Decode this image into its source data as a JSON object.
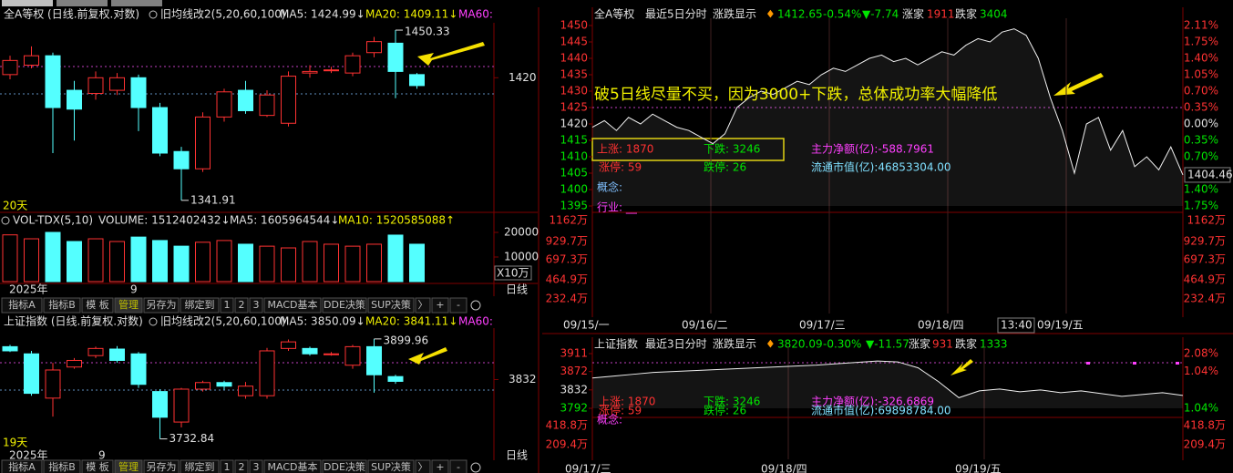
{
  "left_top": {
    "header": {
      "name": "全A等权 (日线.前复权.对数)",
      "indicator": "旧均线改2(5,20,60,100)",
      "ma5": "MA5: 1424.99↓",
      "ma20": "MA20: 1409.11↓",
      "ma60": "MA60:"
    },
    "ylim": [
      1336,
      1455
    ],
    "yticks": [
      1420
    ],
    "high_label": "1450.33",
    "low_label": "1341.91",
    "days": "20天",
    "candles": [
      [
        1422,
        1434,
        1419,
        1431
      ],
      [
        1428,
        1440,
        1426,
        1434
      ],
      [
        1434,
        1436,
        1372,
        1401
      ],
      [
        1412,
        1418,
        1380,
        1400
      ],
      [
        1410,
        1424,
        1406,
        1420
      ],
      [
        1412,
        1423,
        1409,
        1420
      ],
      [
        1420,
        1422,
        1386,
        1401
      ],
      [
        1401,
        1404,
        1370,
        1372
      ],
      [
        1373,
        1376,
        1341.91,
        1362
      ],
      [
        1362,
        1398,
        1360,
        1395
      ],
      [
        1395,
        1413,
        1392,
        1411
      ],
      [
        1412,
        1418,
        1397,
        1399
      ],
      [
        1396,
        1412,
        1395,
        1409
      ],
      [
        1391,
        1424,
        1389,
        1421
      ],
      [
        1423,
        1428,
        1420,
        1424
      ],
      [
        1425,
        1427,
        1423,
        1425
      ],
      [
        1423,
        1436,
        1421,
        1434
      ],
      [
        1436,
        1446,
        1433,
        1443
      ],
      [
        1442,
        1450.33,
        1407,
        1424
      ],
      [
        1422,
        1423,
        1413,
        1415
      ]
    ],
    "volume": {
      "header": {
        "name": "VOL-TDX(5,10)",
        "volume": "VOLUME: 1512402432↓",
        "ma5": "MA5: 1605964544↓",
        "ma10": "MA10: 1520585088↑"
      },
      "values": [
        19000,
        17400,
        20000,
        16300,
        17400,
        16300,
        18100,
        16700,
        14400,
        16000,
        16700,
        15200,
        14400,
        13700,
        16300,
        15200,
        14400,
        15200,
        18900,
        15200
      ],
      "ylim": [
        0,
        20000
      ],
      "yticks": [
        20000,
        10000
      ],
      "unit": "X10万"
    },
    "x_labels": [
      "2025年",
      "9"
    ],
    "period": "日线",
    "toolbar": [
      "指标A",
      "指标B",
      "模 板",
      "管理",
      "另存为",
      "绑定到",
      "1",
      "2",
      "3",
      "MACD基本",
      "DDE决策",
      "SUP决策",
      "〉",
      "+",
      "-"
    ]
  },
  "left_bottom": {
    "header": {
      "name": "上证指数 (日线.前复权.对数)",
      "indicator": "旧均线改2(5,20,60,100)",
      "ma5": "MA5: 3850.09↓",
      "ma20": "MA20: 3841.11↓",
      "ma60": "MA60:"
    },
    "ylim": [
      3720,
      3915
    ],
    "yticks": [
      3832
    ],
    "high_label": "3899.96",
    "low_label": "3732.84",
    "days": "19天",
    "candles": [
      [
        3887,
        3890,
        3878,
        3880
      ],
      [
        3875,
        3880,
        3805,
        3809
      ],
      [
        3801,
        3860,
        3770,
        3848
      ],
      [
        3853,
        3868,
        3850,
        3864
      ],
      [
        3872,
        3887,
        3868,
        3884
      ],
      [
        3883,
        3888,
        3860,
        3864
      ],
      [
        3875,
        3878,
        3818,
        3824
      ],
      [
        3812,
        3816,
        3732.84,
        3769
      ],
      [
        3761,
        3818,
        3752,
        3816
      ],
      [
        3816,
        3830,
        3812,
        3827
      ],
      [
        3827,
        3830,
        3815,
        3821
      ],
      [
        3805,
        3828,
        3800,
        3821
      ],
      [
        3805,
        3885,
        3800,
        3880
      ],
      [
        3884,
        3899,
        3880,
        3895
      ],
      [
        3884,
        3887,
        3872,
        3875
      ],
      [
        3875,
        3878,
        3872,
        3875
      ],
      [
        3856,
        3890,
        3850,
        3887
      ],
      [
        3887,
        3899.96,
        3810,
        3840
      ],
      [
        3837,
        3840,
        3825,
        3829
      ]
    ],
    "x_labels": [
      "2025年",
      "9"
    ],
    "period": "日线",
    "toolbar": [
      "指标A",
      "指标B",
      "模 板",
      "管理",
      "另存为",
      "绑定到",
      "1",
      "2",
      "3",
      "MACD基本",
      "DDE决策",
      "SUP决策",
      "〉",
      "+",
      "-"
    ]
  },
  "right_top": {
    "header": [
      "全A等权",
      "最近5日分时",
      "涨跌显示",
      "1412.65",
      "-0.54%",
      "▼-7.74",
      "涨家",
      "1911",
      "跌家",
      "3404"
    ],
    "ylim": [
      1395,
      1450
    ],
    "yticks": [
      1450,
      1445,
      1440,
      1435,
      1430,
      1425,
      1420,
      1415,
      1410,
      1405,
      1400,
      1395
    ],
    "right_labels": [
      "2.11%",
      "1.75%",
      "1.40%",
      "1.05%",
      "0.70%",
      "0.35%",
      "0.00%",
      "0.35%",
      "0.70%",
      null,
      "1.40%",
      "1.75%"
    ],
    "last_price": "1404.46",
    "volume_labels": [
      "1162万",
      "929.7万",
      "697.3万",
      "464.9万",
      "232.4万"
    ],
    "annotation": "破5日线尽量不买，因为3000+下跌，总体成功率大幅降低",
    "info": {
      "up": "上涨: 1870",
      "down": "下跌: 3246",
      "net": "主力净额(亿):-588.7961",
      "limit_up": "涨停: 59",
      "limit_down": "跌停: 26",
      "cap": "流通市值(亿):46853304.00",
      "concept": "概念:",
      "industry": "行业: __"
    },
    "x_labels": [
      "09/15/一",
      "09/16/二",
      "09/17/三",
      "09/18/四",
      "13:40",
      "09/19/五"
    ],
    "price": [
      1419,
      1421,
      1418,
      1422,
      1420,
      1423,
      1421,
      1419,
      1418,
      1416,
      1414,
      1417,
      1425,
      1428,
      1430,
      1429,
      1431,
      1433,
      1432,
      1435,
      1437,
      1436,
      1438,
      1440,
      1441,
      1439,
      1440,
      1438,
      1440,
      1442,
      1441,
      1444,
      1446,
      1445,
      1448,
      1449,
      1447,
      1440,
      1428,
      1418,
      1405,
      1420,
      1422,
      1412,
      1418,
      1407,
      1410,
      1406,
      1413,
      1404.46
    ]
  },
  "right_bottom": {
    "header": [
      "上证指数",
      "最近3日分时",
      "涨跌显示",
      "3820.09",
      "-0.30%",
      "▼-11.57",
      "涨家",
      "931",
      "跌家",
      "1333"
    ],
    "ylim": [
      3792,
      3911
    ],
    "yticks": [
      3911,
      3872,
      3832,
      3792
    ],
    "right_labels": [
      "2.08%",
      "1.04%",
      null,
      "1.04%"
    ],
    "volume_labels": [
      "418.8万",
      "209.4万"
    ],
    "info": {
      "up": "上涨: 1870",
      "down": "下跌: 3246",
      "net": "主力净额(亿):-326.6869",
      "limit_up": "涨停: 59",
      "limit_down": "跌停: 26",
      "cap": "流通市值(亿):69898784.00",
      "concept": "概念:"
    },
    "x_labels": [
      "09/17/三",
      "09/18/四",
      "09/19/五"
    ],
    "price": [
      3858,
      3862,
      3866,
      3870,
      3872,
      3874,
      3876,
      3878,
      3880,
      3882,
      3884,
      3886,
      3889,
      3892,
      3895,
      3893,
      3880,
      3850,
      3815,
      3830,
      3834,
      3828,
      3832,
      3826,
      3830,
      3824,
      3818,
      3822,
      3826,
      3820.09
    ]
  }
}
